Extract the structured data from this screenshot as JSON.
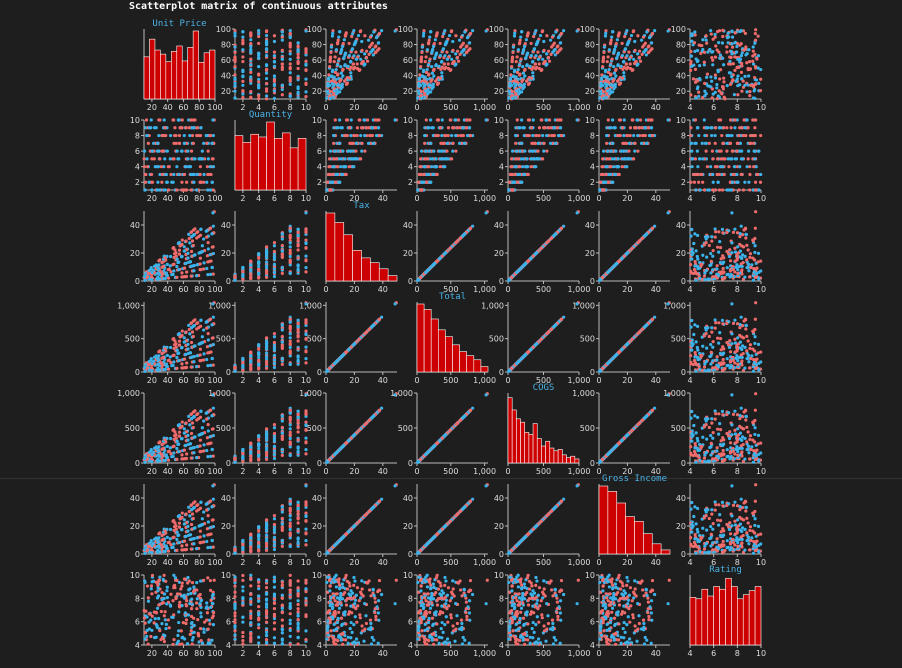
{
  "title": "Scatterplot matrix of continuous attributes",
  "colors": {
    "background": "#1e1e1e",
    "series_a": "#f06b6b",
    "series_b": "#3bb3ea",
    "histogram": "#cc0000",
    "label": "#4ab3e6"
  },
  "chart_data": {
    "type": "scatter",
    "variables": [
      "Unit Price",
      "Quantity",
      "Tax",
      "Total",
      "COGS",
      "Gross Income",
      "Rating"
    ],
    "axes": [
      {
        "name": "Unit Price",
        "domain": [
          10,
          100
        ],
        "ticks": [
          20,
          40,
          60,
          80,
          100
        ],
        "tick_labels": [
          "20",
          "40",
          "60",
          "80",
          "100"
        ]
      },
      {
        "name": "Quantity",
        "domain": [
          1,
          10
        ],
        "ticks": [
          2,
          4,
          6,
          8,
          10
        ],
        "tick_labels": [
          "2",
          "4",
          "6",
          "8",
          "10"
        ]
      },
      {
        "name": "Tax",
        "domain": [
          0,
          50
        ],
        "ticks": [
          0,
          20,
          40
        ],
        "tick_labels": [
          "0",
          "20",
          "40"
        ]
      },
      {
        "name": "Total",
        "domain": [
          0,
          1050
        ],
        "ticks": [
          0,
          500,
          1000
        ],
        "tick_labels": [
          "0",
          "500",
          "1,000"
        ]
      },
      {
        "name": "COGS",
        "domain": [
          0,
          1000
        ],
        "ticks": [
          0,
          500,
          1000
        ],
        "tick_labels": [
          "0",
          "500",
          "1,000"
        ]
      },
      {
        "name": "Gross Income",
        "domain": [
          0,
          50
        ],
        "ticks": [
          0,
          20,
          40
        ],
        "tick_labels": [
          "0",
          "20",
          "40"
        ]
      },
      {
        "name": "Rating",
        "domain": [
          4,
          10
        ],
        "ticks": [
          4,
          6,
          8,
          10
        ],
        "tick_labels": [
          "4",
          "6",
          "8",
          "10"
        ]
      }
    ],
    "histograms": {
      "Unit Price": [
        62,
        88,
        72,
        66,
        55,
        70,
        78,
        56,
        76,
        100,
        54,
        68,
        72
      ],
      "Quantity": [
        80,
        70,
        82,
        78,
        100,
        76,
        84,
        62,
        76
      ],
      "Tax": [
        100,
        86,
        68,
        45,
        34,
        27,
        18,
        8
      ],
      "Total": [
        100,
        92,
        78,
        62,
        52,
        40,
        30,
        24,
        18,
        8
      ],
      "COGS": [
        96,
        78,
        65,
        60,
        45,
        42,
        58,
        36,
        25,
        32,
        22,
        18,
        20,
        12,
        8,
        10,
        6
      ],
      "Gross Income": [
        100,
        92,
        75,
        55,
        48,
        30,
        15,
        6
      ],
      "Rating": [
        70,
        68,
        82,
        72,
        86,
        82,
        98,
        86,
        68,
        74,
        80,
        86
      ]
    },
    "legend": "none"
  }
}
